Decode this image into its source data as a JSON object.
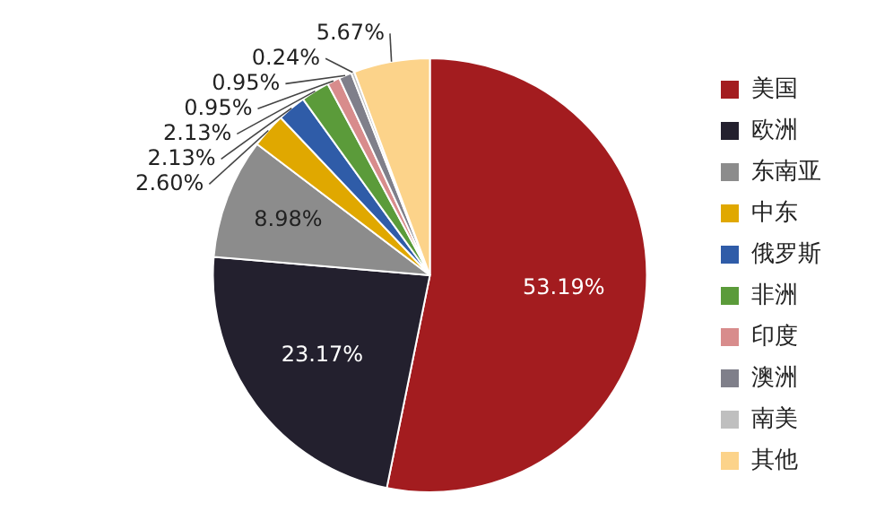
{
  "chart_data": {
    "type": "pie",
    "categories": [
      "美国",
      "欧洲",
      "东南亚",
      "中东",
      "俄罗斯",
      "非洲",
      "印度",
      "澳洲",
      "南美",
      "其他"
    ],
    "values": [
      53.19,
      23.17,
      8.98,
      2.6,
      2.13,
      2.13,
      0.95,
      0.95,
      0.24,
      5.67
    ],
    "colors": [
      "#a31c1f",
      "#23202e",
      "#8c8c8c",
      "#e0a800",
      "#2f5ca8",
      "#5b9b3a",
      "#d88c8c",
      "#7f7f8a",
      "#bfbfbf",
      "#fcd38a"
    ],
    "value_labels": [
      "53.19%",
      "23.17%",
      "8.98%",
      "2.60%",
      "2.13%",
      "2.13%",
      "0.95%",
      "0.95%",
      "0.24%",
      "5.67%"
    ],
    "legend": "right"
  }
}
